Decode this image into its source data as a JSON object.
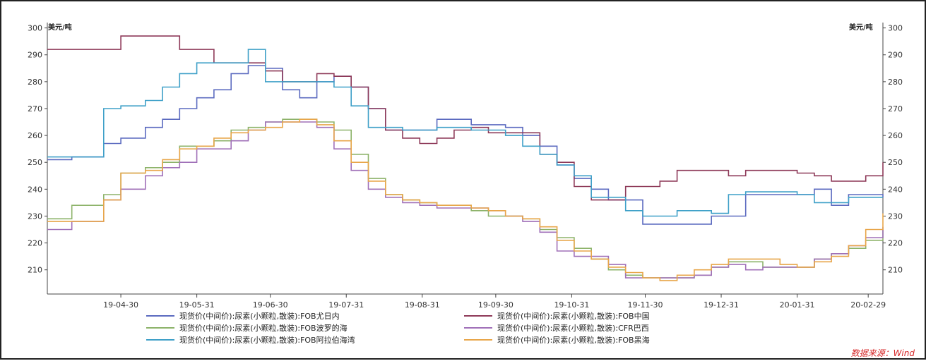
{
  "chart_data": {
    "type": "line",
    "left_unit": "美元/吨",
    "right_unit": "美元/吨",
    "ylim": [
      201,
      302
    ],
    "yticks": [
      210,
      220,
      230,
      240,
      250,
      260,
      270,
      280,
      290,
      300
    ],
    "x_ticks": [
      "19-04-30",
      "19-05-31",
      "19-06-30",
      "19-07-31",
      "19-08-31",
      "19-09-30",
      "19-10-31",
      "19-11-30",
      "19-12-31",
      "20-01-31",
      "20-02-29"
    ],
    "source": "数据来源：Wind",
    "series": [
      {
        "name": "现货价(中间价):尿素(小颗粒,散装):FOB尤日内",
        "color": "#5c6bc0",
        "x": [
          "2019-03-31",
          "2019-04-10",
          "2019-04-18",
          "2019-04-23",
          "2019-04-30",
          "2019-05-10",
          "2019-05-17",
          "2019-05-24",
          "2019-05-31",
          "2019-06-07",
          "2019-06-14",
          "2019-06-21",
          "2019-06-28",
          "2019-07-05",
          "2019-07-12",
          "2019-07-19",
          "2019-07-26",
          "2019-08-02",
          "2019-08-09",
          "2019-08-16",
          "2019-08-23",
          "2019-08-30",
          "2019-09-06",
          "2019-09-13",
          "2019-09-20",
          "2019-09-27",
          "2019-10-04",
          "2019-10-11",
          "2019-10-18",
          "2019-10-25",
          "2019-11-01",
          "2019-11-08",
          "2019-11-15",
          "2019-11-22",
          "2019-11-29",
          "2019-12-06",
          "2019-12-13",
          "2019-12-20",
          "2019-12-27",
          "2020-01-03",
          "2020-01-10",
          "2020-01-17",
          "2020-01-24",
          "2020-01-31",
          "2020-02-07",
          "2020-02-14",
          "2020-02-21",
          "2020-02-28",
          "2020-03-06"
        ],
        "values": [
          251,
          252,
          252,
          257,
          259,
          263,
          266,
          270,
          274,
          277,
          283,
          286,
          285,
          277,
          274,
          280,
          282,
          278,
          270,
          262,
          262,
          262,
          266,
          266,
          264,
          264,
          263,
          260,
          256,
          249,
          244,
          240,
          236,
          236,
          227,
          227,
          227,
          227,
          230,
          230,
          238,
          238,
          238,
          238,
          240,
          234,
          238,
          238,
          237
        ]
      },
      {
        "name": "现货价(中间价):尿素(小颗粒,散装):FOB中国",
        "color": "#8e3a59",
        "x": [
          "2019-03-31",
          "2019-04-10",
          "2019-04-18",
          "2019-04-23",
          "2019-04-30",
          "2019-05-10",
          "2019-05-17",
          "2019-05-24",
          "2019-05-31",
          "2019-06-07",
          "2019-06-14",
          "2019-06-21",
          "2019-06-28",
          "2019-07-05",
          "2019-07-12",
          "2019-07-19",
          "2019-07-26",
          "2019-08-02",
          "2019-08-09",
          "2019-08-16",
          "2019-08-23",
          "2019-08-30",
          "2019-09-06",
          "2019-09-13",
          "2019-09-20",
          "2019-09-27",
          "2019-10-04",
          "2019-10-11",
          "2019-10-18",
          "2019-10-25",
          "2019-11-01",
          "2019-11-08",
          "2019-11-15",
          "2019-11-22",
          "2019-11-29",
          "2019-12-06",
          "2019-12-13",
          "2019-12-20",
          "2019-12-27",
          "2020-01-03",
          "2020-01-10",
          "2020-01-17",
          "2020-01-24",
          "2020-01-31",
          "2020-02-07",
          "2020-02-14",
          "2020-02-21",
          "2020-02-28",
          "2020-03-06"
        ],
        "values": [
          292,
          292,
          292,
          292,
          297,
          297,
          297,
          292,
          292,
          287,
          287,
          287,
          284,
          280,
          280,
          283,
          282,
          278,
          270,
          262,
          259,
          257,
          259,
          262,
          263,
          261,
          261,
          261,
          253,
          250,
          241,
          236,
          236,
          241,
          241,
          243,
          247,
          247,
          247,
          245,
          247,
          247,
          247,
          246,
          245,
          243,
          243,
          245,
          250
        ]
      },
      {
        "name": "现货价(中间价):尿素(小颗粒,散装):FOB波罗的海",
        "color": "#8db36a",
        "x": [
          "2019-03-31",
          "2019-04-10",
          "2019-04-18",
          "2019-04-23",
          "2019-04-30",
          "2019-05-10",
          "2019-05-17",
          "2019-05-24",
          "2019-05-31",
          "2019-06-07",
          "2019-06-14",
          "2019-06-21",
          "2019-06-28",
          "2019-07-05",
          "2019-07-12",
          "2019-07-19",
          "2019-07-26",
          "2019-08-02",
          "2019-08-09",
          "2019-08-16",
          "2019-08-23",
          "2019-08-30",
          "2019-09-06",
          "2019-09-13",
          "2019-09-20",
          "2019-09-27",
          "2019-10-04",
          "2019-10-11",
          "2019-10-18",
          "2019-10-25",
          "2019-11-01",
          "2019-11-08",
          "2019-11-15",
          "2019-11-22",
          "2019-11-29",
          "2019-12-06",
          "2019-12-13",
          "2019-12-20",
          "2019-12-27",
          "2020-01-03",
          "2020-01-10",
          "2020-01-17",
          "2020-01-24",
          "2020-01-31",
          "2020-02-07",
          "2020-02-14",
          "2020-02-21",
          "2020-02-28",
          "2020-03-06"
        ],
        "values": [
          229,
          234,
          234,
          238,
          246,
          248,
          250,
          256,
          256,
          258,
          262,
          263,
          265,
          266,
          266,
          265,
          262,
          253,
          244,
          238,
          236,
          235,
          234,
          234,
          232,
          230,
          230,
          229,
          225,
          222,
          218,
          214,
          210,
          208,
          207,
          207,
          207,
          208,
          211,
          213,
          213,
          211,
          211,
          211,
          214,
          216,
          218,
          221,
          225
        ]
      },
      {
        "name": "现货价(中间价):尿素(小颗粒,散装):CFR巴西",
        "color": "#a070b8",
        "x": [
          "2019-03-31",
          "2019-04-10",
          "2019-04-18",
          "2019-04-23",
          "2019-04-30",
          "2019-05-10",
          "2019-05-17",
          "2019-05-24",
          "2019-05-31",
          "2019-06-07",
          "2019-06-14",
          "2019-06-21",
          "2019-06-28",
          "2019-07-05",
          "2019-07-12",
          "2019-07-19",
          "2019-07-26",
          "2019-08-02",
          "2019-08-09",
          "2019-08-16",
          "2019-08-23",
          "2019-08-30",
          "2019-09-06",
          "2019-09-13",
          "2019-09-20",
          "2019-09-27",
          "2019-10-04",
          "2019-10-11",
          "2019-10-18",
          "2019-10-25",
          "2019-11-01",
          "2019-11-08",
          "2019-11-15",
          "2019-11-22",
          "2019-11-29",
          "2019-12-06",
          "2019-12-13",
          "2019-12-20",
          "2019-12-27",
          "2020-01-03",
          "2020-01-10",
          "2020-01-17",
          "2020-01-24",
          "2020-01-31",
          "2020-02-07",
          "2020-02-14",
          "2020-02-21",
          "2020-02-28",
          "2020-03-06"
        ],
        "values": [
          225,
          228,
          228,
          236,
          240,
          245,
          248,
          250,
          255,
          255,
          258,
          262,
          265,
          265,
          265,
          263,
          255,
          247,
          240,
          237,
          235,
          234,
          233,
          233,
          233,
          232,
          230,
          228,
          224,
          217,
          215,
          215,
          212,
          207,
          207,
          207,
          207,
          208,
          211,
          212,
          210,
          211,
          211,
          211,
          214,
          216,
          219,
          222,
          226
        ]
      },
      {
        "name": "现货价(中间价):尿素(小颗粒,散装):FOB阿拉伯海湾",
        "color": "#3fa0c8",
        "x": [
          "2019-03-31",
          "2019-04-10",
          "2019-04-18",
          "2019-04-23",
          "2019-04-30",
          "2019-05-10",
          "2019-05-17",
          "2019-05-24",
          "2019-05-31",
          "2019-06-07",
          "2019-06-14",
          "2019-06-21",
          "2019-06-28",
          "2019-07-05",
          "2019-07-12",
          "2019-07-19",
          "2019-07-26",
          "2019-08-02",
          "2019-08-09",
          "2019-08-16",
          "2019-08-23",
          "2019-08-30",
          "2019-09-06",
          "2019-09-13",
          "2019-09-20",
          "2019-09-27",
          "2019-10-04",
          "2019-10-11",
          "2019-10-18",
          "2019-10-25",
          "2019-11-01",
          "2019-11-08",
          "2019-11-15",
          "2019-11-22",
          "2019-11-29",
          "2019-12-06",
          "2019-12-13",
          "2019-12-20",
          "2019-12-27",
          "2020-01-03",
          "2020-01-10",
          "2020-01-17",
          "2020-01-24",
          "2020-01-31",
          "2020-02-07",
          "2020-02-14",
          "2020-02-21",
          "2020-02-28",
          "2020-03-06"
        ],
        "values": [
          252,
          252,
          252,
          270,
          271,
          273,
          278,
          283,
          287,
          287,
          287,
          292,
          280,
          280,
          280,
          280,
          278,
          271,
          263,
          263,
          262,
          262,
          263,
          263,
          262,
          262,
          260,
          256,
          253,
          249,
          245,
          237,
          237,
          232,
          230,
          230,
          232,
          232,
          231,
          238,
          239,
          239,
          239,
          238,
          235,
          235,
          237,
          237,
          237
        ]
      },
      {
        "name": "现货价(中间价):尿素(小颗粒,散装):FOB黑海",
        "color": "#e8a64a",
        "x": [
          "2019-03-31",
          "2019-04-10",
          "2019-04-18",
          "2019-04-23",
          "2019-04-30",
          "2019-05-10",
          "2019-05-17",
          "2019-05-24",
          "2019-05-31",
          "2019-06-07",
          "2019-06-14",
          "2019-06-21",
          "2019-06-28",
          "2019-07-05",
          "2019-07-12",
          "2019-07-19",
          "2019-07-26",
          "2019-08-02",
          "2019-08-09",
          "2019-08-16",
          "2019-08-23",
          "2019-08-30",
          "2019-09-06",
          "2019-09-13",
          "2019-09-20",
          "2019-09-27",
          "2019-10-04",
          "2019-10-11",
          "2019-10-18",
          "2019-10-25",
          "2019-11-01",
          "2019-11-08",
          "2019-11-15",
          "2019-11-22",
          "2019-11-29",
          "2019-12-06",
          "2019-12-13",
          "2019-12-20",
          "2019-12-27",
          "2020-01-03",
          "2020-01-10",
          "2020-01-17",
          "2020-01-24",
          "2020-01-31",
          "2020-02-07",
          "2020-02-14",
          "2020-02-21",
          "2020-02-28",
          "2020-03-06"
        ],
        "values": [
          228,
          228,
          228,
          236,
          246,
          247,
          251,
          255,
          256,
          259,
          261,
          262,
          263,
          265,
          266,
          264,
          258,
          250,
          243,
          238,
          236,
          235,
          234,
          234,
          233,
          232,
          230,
          229,
          226,
          221,
          217,
          214,
          211,
          209,
          207,
          206,
          208,
          210,
          212,
          214,
          214,
          214,
          212,
          211,
          213,
          215,
          219,
          225,
          231
        ]
      }
    ]
  }
}
